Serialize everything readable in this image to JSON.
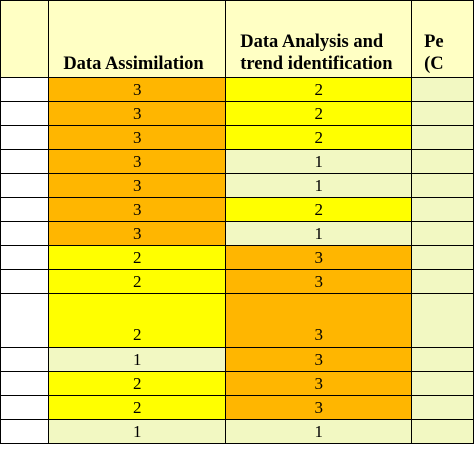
{
  "colors": {
    "header_bg": "#ffffc4",
    "level_3": "#ffb600",
    "level_2": "#ffff00",
    "level_1": "#f2f8c2",
    "col3_bg": "#f2f8c2",
    "blank_col_bg": "#ffffff"
  },
  "headers": {
    "data_assimilation": "Data Assimilation",
    "data_analysis": "Data Analysis and trend identification",
    "cut_column": "Pe (C"
  },
  "rows": [
    {
      "data_assimilation": "3",
      "data_analysis": "2"
    },
    {
      "data_assimilation": "3",
      "data_analysis": "2"
    },
    {
      "data_assimilation": "3",
      "data_analysis": "2"
    },
    {
      "data_assimilation": "3",
      "data_analysis": "1"
    },
    {
      "data_assimilation": "3",
      "data_analysis": "1"
    },
    {
      "data_assimilation": "3",
      "data_analysis": "2"
    },
    {
      "data_assimilation": "3",
      "data_analysis": "1"
    },
    {
      "data_assimilation": "2",
      "data_analysis": "3"
    },
    {
      "data_assimilation": "2",
      "data_analysis": "3"
    },
    {
      "data_assimilation": "2",
      "data_analysis": "3"
    },
    {
      "data_assimilation": "1",
      "data_analysis": "3"
    },
    {
      "data_assimilation": "2",
      "data_analysis": "3"
    },
    {
      "data_assimilation": "2",
      "data_analysis": "3"
    },
    {
      "data_assimilation": "1",
      "data_analysis": "1"
    }
  ]
}
